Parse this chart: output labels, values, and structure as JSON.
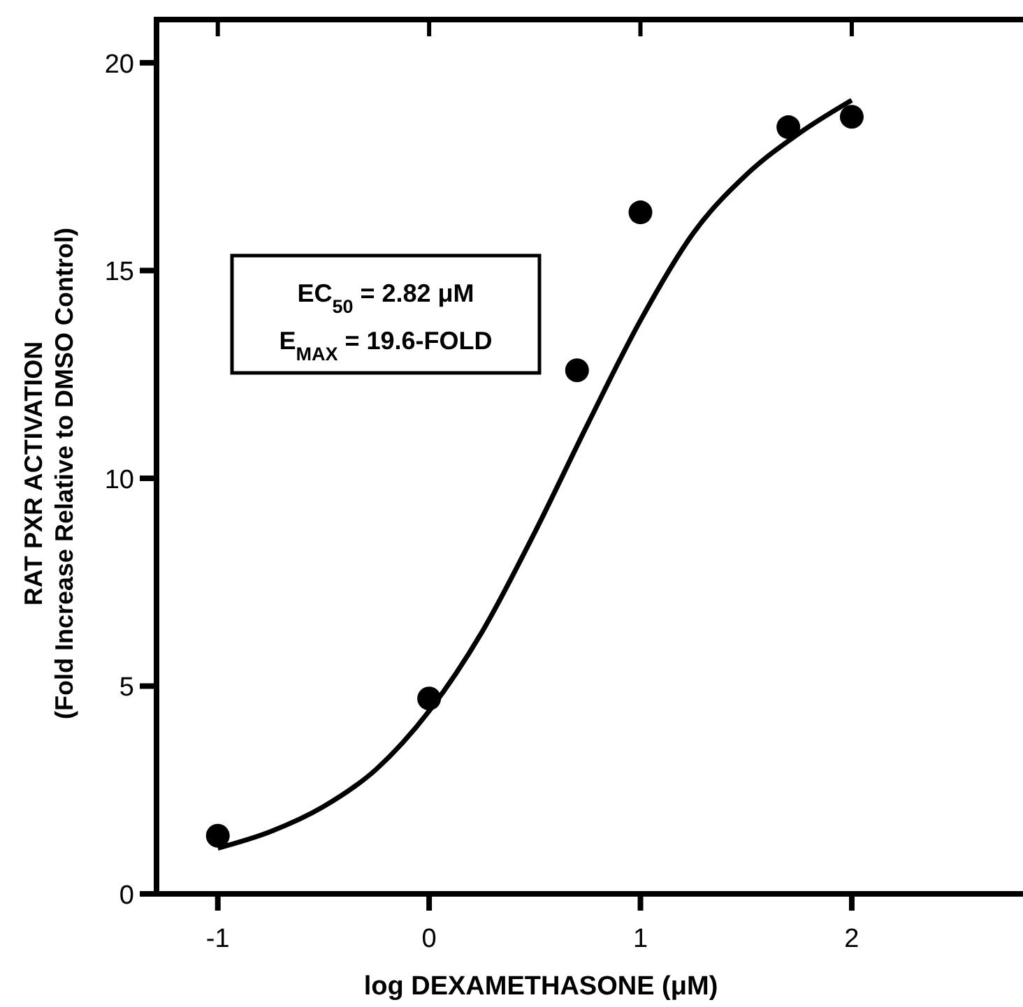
{
  "chart_data": {
    "type": "scatter",
    "xlabel": "log DEXAMETHASONE (μM)",
    "ylabel": "RAT PXR ACTIVATION\n(Fold Increase Relative to DMSO Control)",
    "xlim": [
      -1.29,
      2.85
    ],
    "ylim": [
      0,
      21.04
    ],
    "xticks": [
      -1,
      0,
      1,
      2
    ],
    "yticks": [
      0,
      5,
      10,
      15,
      20
    ],
    "grid": false,
    "annotations": [
      "EC$_{50}$ = 2.82 μM",
      "E$_{MAX}$ = 19.6-FOLD"
    ],
    "series": [
      {
        "color": "#000000",
        "marker": "circle",
        "x": [
          -1,
          0,
          0.7,
          1,
          1.7,
          2
        ],
        "values": [
          1.4,
          4.7,
          12.6,
          16.4,
          18.45,
          18.7
        ]
      },
      {
        "type": "line",
        "color": "#000000",
        "marker": "none",
        "line_style": "solid",
        "x": [
          -1,
          -0.75,
          -0.5,
          -0.25,
          0,
          0.25,
          0.5,
          0.75,
          1,
          1.25,
          1.5,
          1.75,
          2
        ],
        "values": [
          1.1,
          1.5,
          2.1,
          3.0,
          4.4,
          6.3,
          8.7,
          11.3,
          13.8,
          15.9,
          17.3,
          18.3,
          19.1
        ]
      }
    ]
  }
}
